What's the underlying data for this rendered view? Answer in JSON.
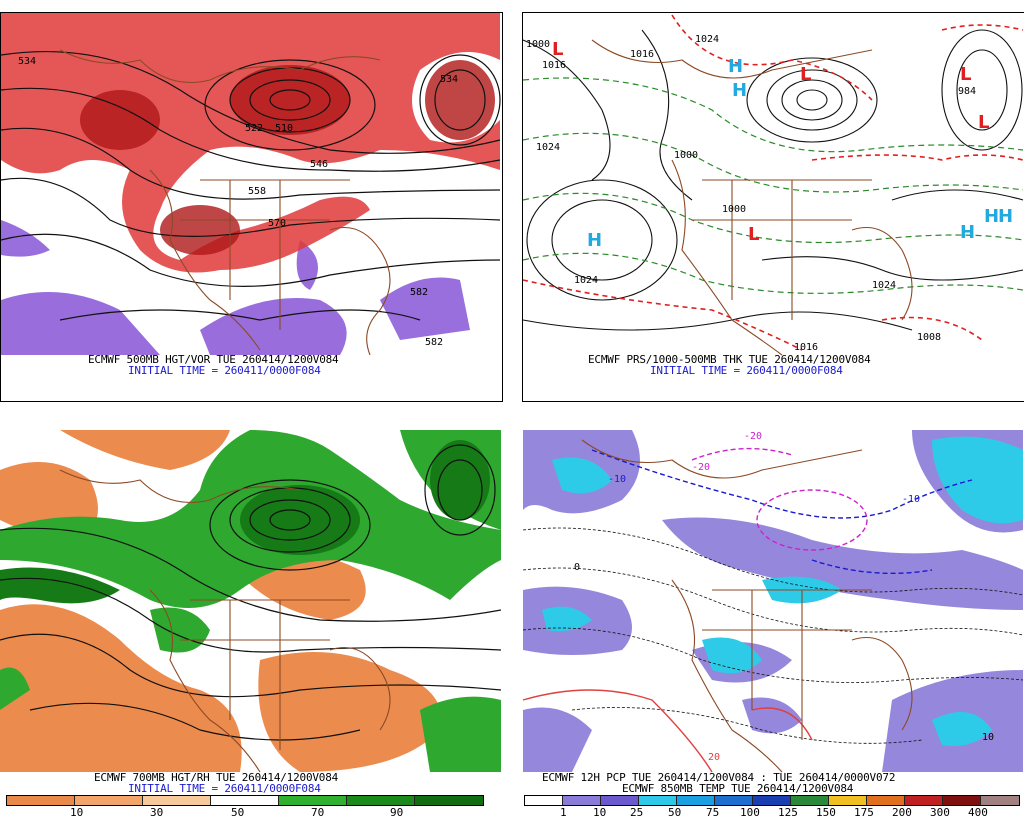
{
  "panels": {
    "tl": {
      "line1": "ECMWF 500MB HGT/VOR TUE 260414/1200V084",
      "line2": "INITIAL TIME = 260411/0000F084",
      "contour_labels": [
        "534",
        "534",
        "522",
        "510",
        "546",
        "558",
        "570",
        "582",
        "582"
      ]
    },
    "tr": {
      "line1": "ECMWF PRS/1000-500MB THK TUE 260414/1200V084",
      "line2": "INITIAL TIME = 260411/0000F084",
      "pressure_labels": [
        "1000",
        "1016",
        "1016",
        "1024",
        "1024",
        "1000",
        "1000",
        "1024",
        "1024",
        "1016",
        "984",
        "1008"
      ],
      "highs": [
        "H",
        "H",
        "H",
        "H",
        "H",
        "H"
      ],
      "lows": [
        "L",
        "L",
        "L",
        "L",
        "L"
      ]
    },
    "bl": {
      "line1": "ECMWF 700MB HGT/RH TUE 260414/1200V084",
      "line2": "INITIAL TIME = 260411/0000F084",
      "scale_ticks": [
        "10",
        "30",
        "50",
        "70",
        "90"
      ],
      "scale_colors": [
        "#e8894a",
        "#f2a46a",
        "#f8c99a",
        "#ffffff",
        "#2fb02f",
        "#1b8a1b",
        "#106e10"
      ]
    },
    "br": {
      "line1": "ECMWF 12H PCP TUE 260414/1200V084 : TUE 260414/0000V072",
      "line2": "ECMWF 850MB TEMP TUE 260414/1200V084",
      "temp_labels": [
        "-20",
        "-10",
        "-10",
        "-20",
        "0",
        "20",
        "10"
      ],
      "scale_ticks": [
        "1",
        "10",
        "25",
        "50",
        "75",
        "100",
        "125",
        "150",
        "175",
        "200",
        "300",
        "400"
      ],
      "scale_colors": [
        "#ffffff",
        "#8a7bd8",
        "#6a5acd",
        "#2ec8e8",
        "#1aa0e0",
        "#1e6ed0",
        "#1a3fb0",
        "#2a8a3a",
        "#f0c020",
        "#e07020",
        "#c02020",
        "#801010",
        "#a08080"
      ]
    }
  }
}
